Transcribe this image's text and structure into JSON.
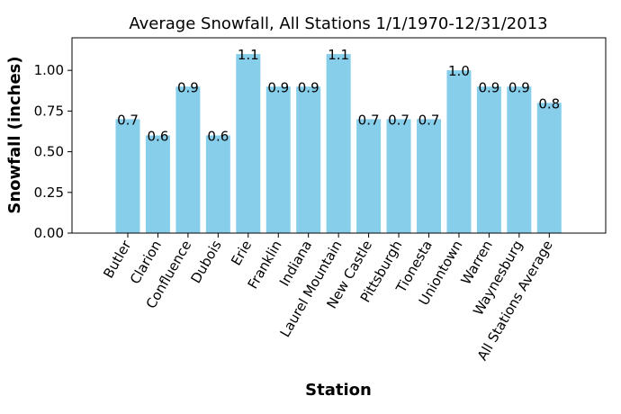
{
  "chart_data": {
    "type": "bar",
    "title": "Average Snowfall, All Stations 1/1/1970-12/31/2013",
    "xlabel": "Station",
    "ylabel": "Snowfall (inches)",
    "categories": [
      "Butler",
      "Clarion",
      "Confluence",
      "Dubois",
      "Erie",
      "Franklin",
      "Indiana",
      "Laurel Mountain",
      "New Castle",
      "Pittsburgh",
      "Tionesta",
      "Uniontown",
      "Warren",
      "Waynesburg",
      "All Stations Average"
    ],
    "values": [
      0.7,
      0.6,
      0.9,
      0.6,
      1.1,
      0.9,
      0.9,
      1.1,
      0.7,
      0.7,
      0.7,
      1.0,
      0.9,
      0.9,
      0.8
    ],
    "value_labels": [
      "0.7",
      "0.6",
      "0.9",
      "0.6",
      "1.1",
      "0.9",
      "0.9",
      "1.1",
      "0.7",
      "0.7",
      "0.7",
      "1.0",
      "0.9",
      "0.9",
      "0.8"
    ],
    "yticks": [
      0.0,
      0.25,
      0.5,
      0.75,
      1.0
    ],
    "ytick_labels": [
      "0.00",
      "0.25",
      "0.50",
      "0.75",
      "1.00"
    ],
    "ylim": [
      0,
      1.2
    ],
    "bar_color": "#87CEEB",
    "grid": false,
    "legend": false
  }
}
